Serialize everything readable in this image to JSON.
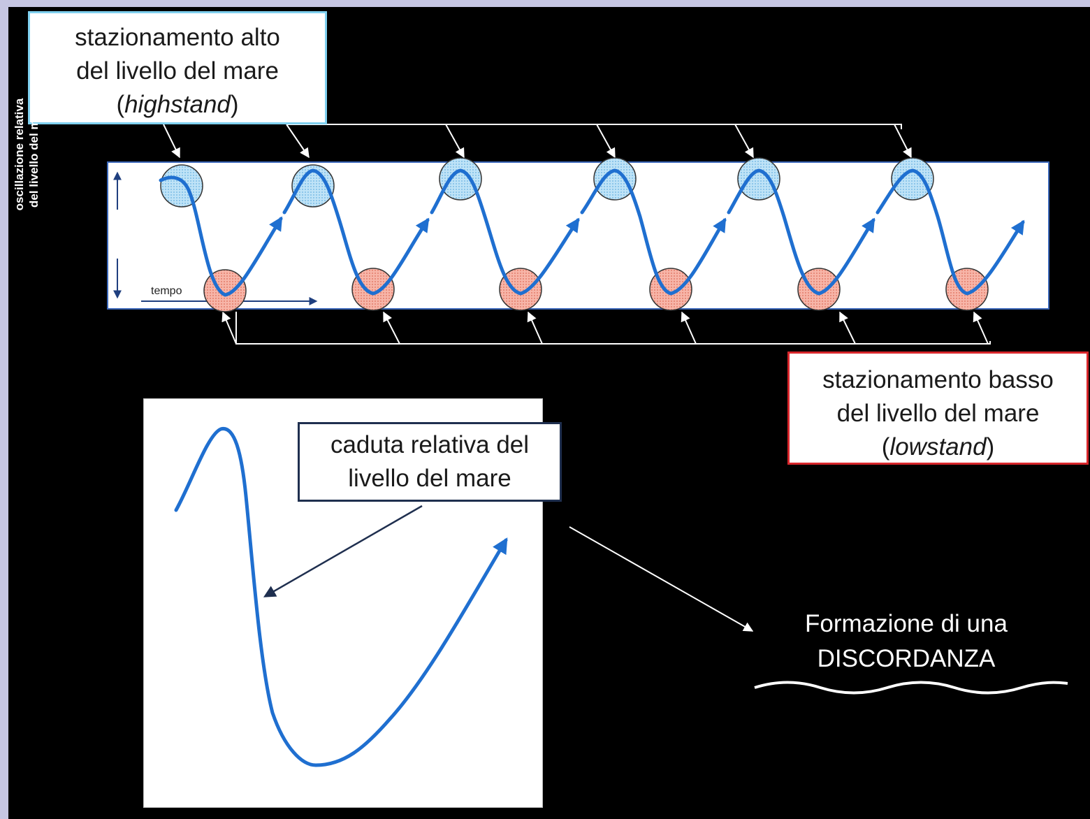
{
  "highstand": {
    "line1": "stazionamento alto",
    "line2": "del livello del mare",
    "paren_open": "(",
    "term": "highstand",
    "paren_close": ")",
    "border_color": "#7fd0ef",
    "marker_color": "#a8d8f2"
  },
  "lowstand": {
    "line1": "stazionamento basso",
    "line2": "del livello del mare",
    "paren_open": "(",
    "term": "lowstand",
    "paren_close": ")",
    "border_color": "#d8262b",
    "marker_color": "#f2a79a"
  },
  "oscillation": {
    "y_label_line1": "oscillazione relativa",
    "y_label_line2": "del livello del mare",
    "x_label": "tempo",
    "curve_color": "#1f6fd0",
    "highstand_count": 6,
    "lowstand_count": 6
  },
  "fall_callout": {
    "line1": "caduta relativa del",
    "line2": "livello del mare"
  },
  "result": {
    "line1": "Formazione di una",
    "line2": "DISCORDANZA"
  }
}
